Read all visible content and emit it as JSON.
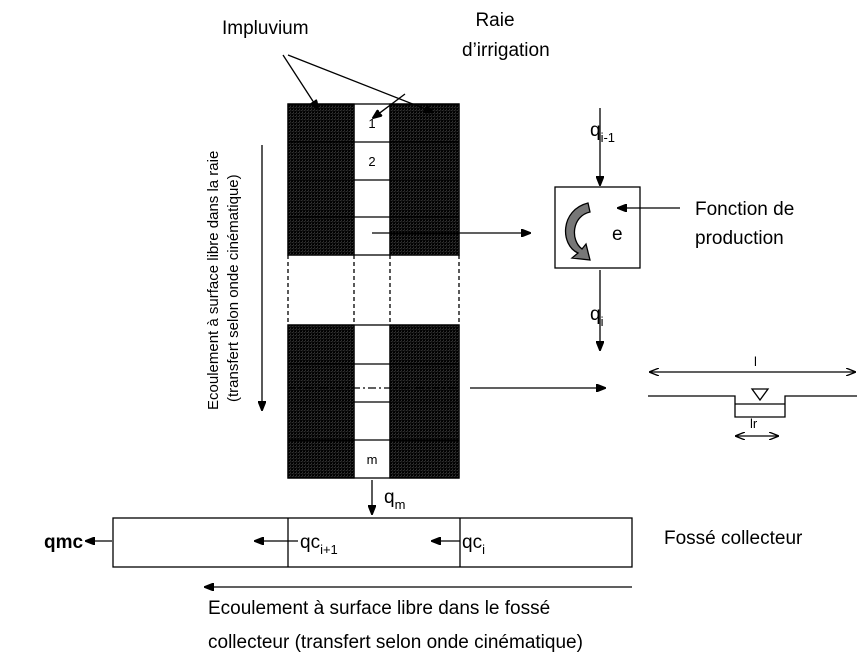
{
  "labels": {
    "impluvium": "Impluvium",
    "raie": [
      "Raie",
      "d’irrigation"
    ],
    "flow_raie": [
      "Ecoulement à surface libre dans la raie",
      "(transfert selon onde cinématique)"
    ],
    "cells": [
      "1",
      "2",
      "m"
    ],
    "q_in": {
      "base": "q",
      "sub": "i-1"
    },
    "e": "e",
    "fonction": [
      "Fonction de",
      "production"
    ],
    "q_out": {
      "base": "q",
      "sub": "i"
    },
    "l": "l",
    "lr": "lr",
    "q_m": {
      "base": "q",
      "sub": "m"
    },
    "qmc": "qmc",
    "qc_next": {
      "base": "qc",
      "sub": "i+1"
    },
    "qc_i": {
      "base": "qc",
      "sub": "i"
    },
    "fosse": "Fossé collecteur",
    "flow_fosse": [
      "Ecoulement à surface libre dans le fossé",
      "collecteur (transfert selon onde cinématique)"
    ]
  }
}
